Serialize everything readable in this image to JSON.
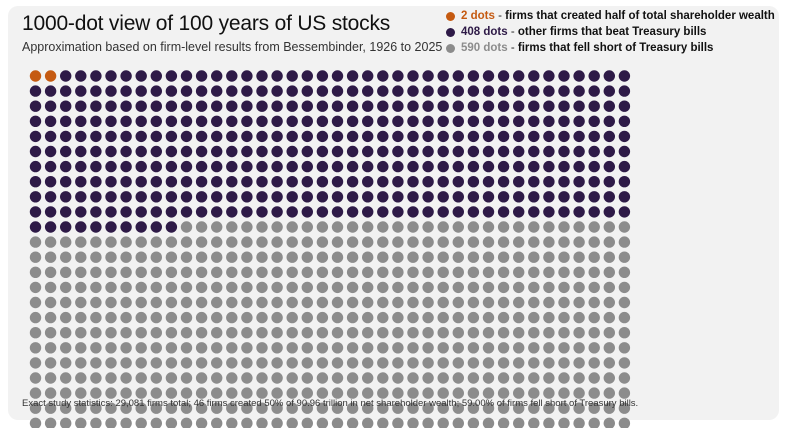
{
  "chart_data": {
    "type": "waffle",
    "title": "1000-dot view of 100 years of US stocks",
    "subtitle": "Approximation based on firm-level results from Bessembinder, 1926 to 2025",
    "total_dots": 1000,
    "dots_per_row": 40,
    "rows": 25,
    "series": [
      {
        "name": "firms that created half of total shareholder wealth",
        "count_label": "2 dots",
        "value": 2,
        "color": "#c55a11"
      },
      {
        "name": "other firms that beat Treasury bills",
        "count_label": "408 dots",
        "value": 408,
        "color": "#2e1a47"
      },
      {
        "name": "firms that fell short of Treasury bills",
        "count_label": "590 dots",
        "value": 590,
        "color": "#8c8c8c"
      }
    ],
    "legend_separator": "-",
    "legend_placement": "top-right",
    "footnote": "Exact study statistics: 29,081 firms total; 46 firms created 50% of 90.96 trillion in net shareholder wealth; 59.00% of firms fell short of Treasury bills."
  }
}
